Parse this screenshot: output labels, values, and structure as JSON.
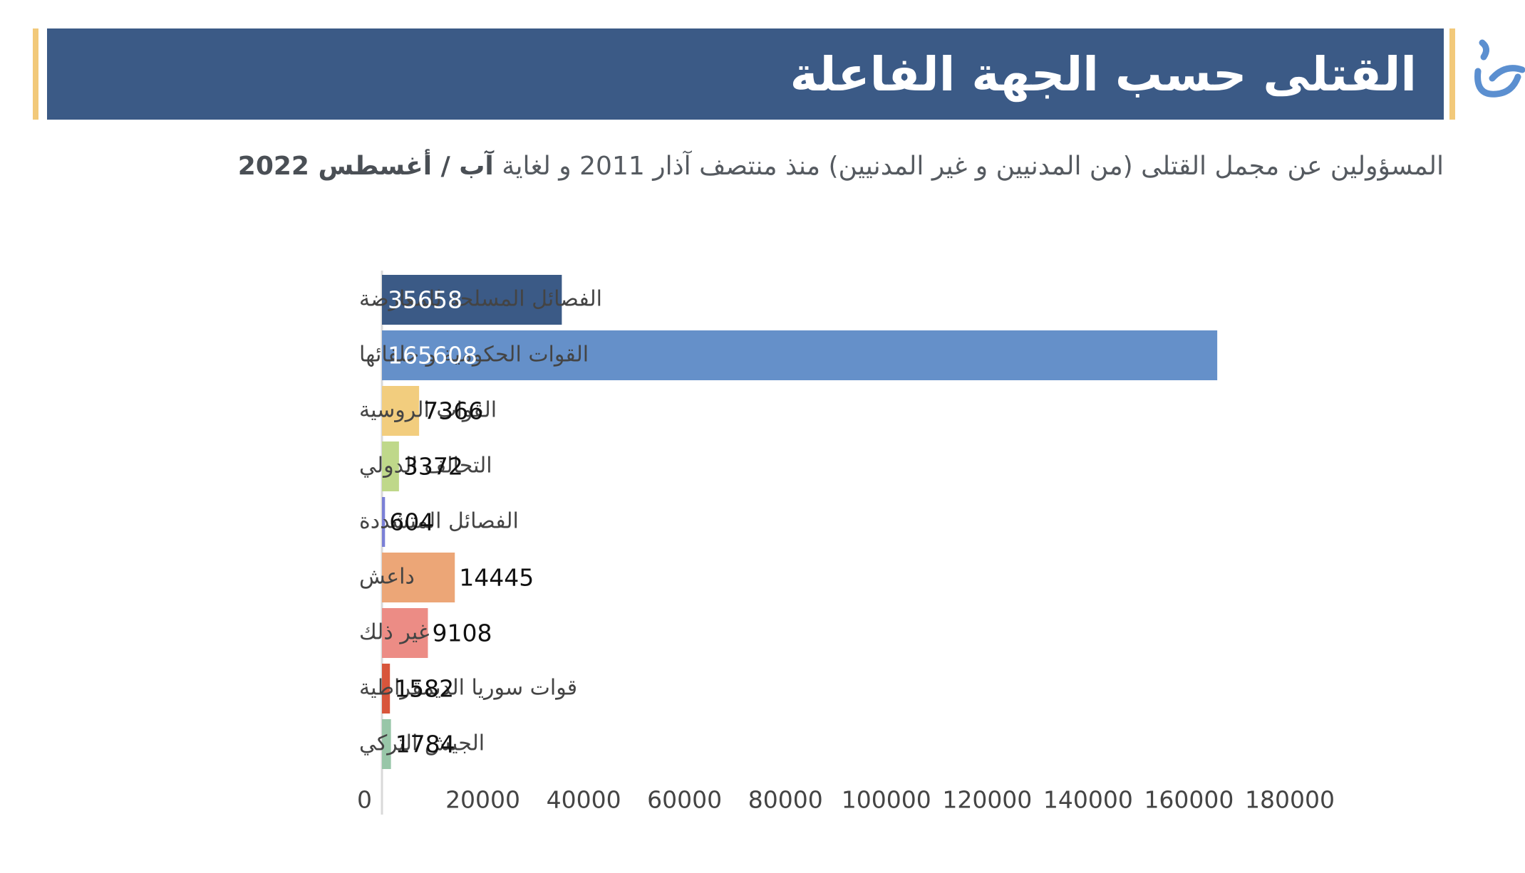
{
  "header": {
    "title": "القتلى حسب الجهة الفاعلة"
  },
  "subtitle": {
    "text_part1": "المسؤولين عن مجمل القتلى (من المدنيين و غير المدنيين) منذ منتصف آذار 2011 و لغاية",
    "text_bold": "آب / أغسطس 2022"
  },
  "colors": {
    "banner": "#3b5a86",
    "accent": "#f2c97a",
    "logo": "#5b8fd0"
  },
  "chart_data": {
    "type": "bar",
    "orientation": "horizontal",
    "categories": [
      "الفصائل المسلحة للمعارضة",
      "القوات الحكومية و حلفائها",
      "القوات الروسية",
      "التحالف الدولي",
      "الفصائل المتشددة",
      "داعش",
      "غير ذلك",
      "قوات سوريا الديمقراطية",
      "الجيش التركي"
    ],
    "values": [
      35658,
      165608,
      7366,
      3372,
      604,
      14445,
      9108,
      1582,
      1784
    ],
    "value_labels": [
      "35658",
      "165608",
      "7366",
      "3372",
      "604",
      "14445",
      "9108",
      "1582",
      "1784"
    ],
    "colors": [
      "#3b5a86",
      "#6590c9",
      "#f2cd7e",
      "#bfd88a",
      "#7b80d6",
      "#eca677",
      "#ec8c85",
      "#d8553b",
      "#98c6a8"
    ],
    "xlim": [
      0,
      180000
    ],
    "xticks": [
      "0",
      "20000",
      "40000",
      "60000",
      "80000",
      "100000",
      "120000",
      "140000",
      "160000",
      "180000"
    ],
    "grid": false
  }
}
